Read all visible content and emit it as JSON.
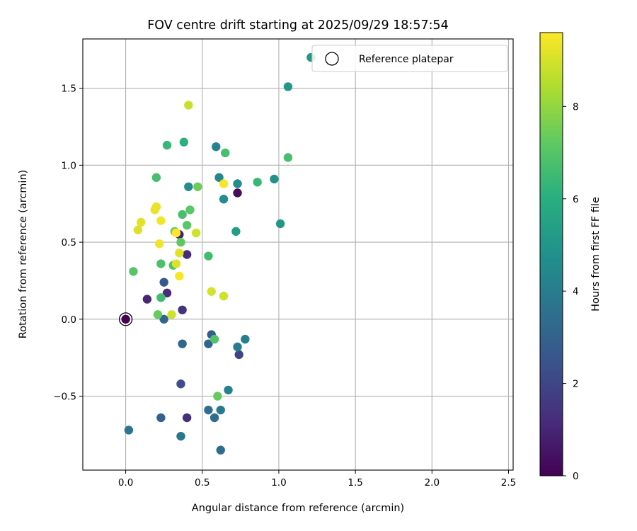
{
  "chart_data": {
    "type": "scatter",
    "title": "FOV centre drift starting at 2025/09/29 18:57:54",
    "xlabel": "Angular distance from reference (arcmin)",
    "ylabel": "Rotation from reference (arcmin)",
    "xlim": [
      -0.28,
      2.53
    ],
    "ylim": [
      -0.98,
      1.82
    ],
    "xticks": [
      0.0,
      0.5,
      1.0,
      1.5,
      2.0,
      2.5
    ],
    "xtick_labels": [
      "0.0",
      "0.5",
      "1.0",
      "1.5",
      "2.0",
      "2.5"
    ],
    "yticks": [
      -0.5,
      0.0,
      0.5,
      1.0,
      1.5
    ],
    "ytick_labels": [
      "−0.5",
      "0.0",
      "0.5",
      "1.0",
      "1.5"
    ],
    "grid": true,
    "legend": {
      "position": "top-right",
      "entries": [
        "Reference platepar"
      ]
    },
    "reference_point": {
      "x": 0.0,
      "y": 0.0,
      "hours": 0.0
    },
    "colorbar": {
      "label": "Hours from first FF file",
      "range": [
        0,
        9.6
      ],
      "ticks": [
        0,
        2,
        4,
        6,
        8
      ],
      "tick_labels": [
        "0",
        "2",
        "4",
        "6",
        "8"
      ],
      "colormap": "viridis"
    },
    "points": [
      {
        "x": 0.0,
        "y": 0.0,
        "hours": 0.0
      },
      {
        "x": 0.73,
        "y": 0.82,
        "hours": 0.3
      },
      {
        "x": 0.35,
        "y": 0.55,
        "hours": 0.8
      },
      {
        "x": 0.14,
        "y": 0.13,
        "hours": 1.0
      },
      {
        "x": 0.27,
        "y": 0.17,
        "hours": 1.2
      },
      {
        "x": 0.4,
        "y": 0.42,
        "hours": 1.2
      },
      {
        "x": 0.4,
        "y": -0.64,
        "hours": 1.3
      },
      {
        "x": 0.37,
        "y": 0.06,
        "hours": 1.4
      },
      {
        "x": 0.74,
        "y": -0.23,
        "hours": 2.0
      },
      {
        "x": 0.36,
        "y": -0.42,
        "hours": 2.3
      },
      {
        "x": 0.25,
        "y": 0.24,
        "hours": 2.7
      },
      {
        "x": 0.56,
        "y": -0.1,
        "hours": 2.8
      },
      {
        "x": 0.23,
        "y": -0.64,
        "hours": 3.0
      },
      {
        "x": 0.54,
        "y": -0.16,
        "hours": 3.1
      },
      {
        "x": 0.25,
        "y": 0.0,
        "hours": 3.1
      },
      {
        "x": 0.37,
        "y": -0.16,
        "hours": 3.2
      },
      {
        "x": 0.62,
        "y": -0.85,
        "hours": 3.3
      },
      {
        "x": 0.58,
        "y": -0.64,
        "hours": 3.4
      },
      {
        "x": 0.54,
        "y": -0.59,
        "hours": 3.5
      },
      {
        "x": 0.02,
        "y": -0.72,
        "hours": 3.7
      },
      {
        "x": 0.36,
        "y": -0.76,
        "hours": 3.8
      },
      {
        "x": 0.62,
        "y": -0.59,
        "hours": 3.9
      },
      {
        "x": 0.73,
        "y": -0.18,
        "hours": 4.0
      },
      {
        "x": 0.78,
        "y": -0.13,
        "hours": 4.1
      },
      {
        "x": 0.67,
        "y": -0.46,
        "hours": 4.2
      },
      {
        "x": 0.59,
        "y": 1.12,
        "hours": 4.2
      },
      {
        "x": 0.61,
        "y": 0.92,
        "hours": 4.4
      },
      {
        "x": 0.73,
        "y": 0.88,
        "hours": 4.6
      },
      {
        "x": 0.64,
        "y": 0.78,
        "hours": 4.6
      },
      {
        "x": 0.41,
        "y": 0.86,
        "hours": 4.7
      },
      {
        "x": 0.97,
        "y": 0.91,
        "hours": 4.9
      },
      {
        "x": 1.06,
        "y": 1.51,
        "hours": 5.0
      },
      {
        "x": 1.01,
        "y": 0.62,
        "hours": 5.0
      },
      {
        "x": 1.21,
        "y": 1.7,
        "hours": 5.1
      },
      {
        "x": 0.72,
        "y": 0.57,
        "hours": 5.3
      },
      {
        "x": 0.38,
        "y": 1.15,
        "hours": 6.1
      },
      {
        "x": 0.27,
        "y": 1.13,
        "hours": 6.4
      },
      {
        "x": 0.86,
        "y": 0.89,
        "hours": 6.4
      },
      {
        "x": 0.23,
        "y": 0.14,
        "hours": 6.6
      },
      {
        "x": 0.54,
        "y": 0.41,
        "hours": 6.6
      },
      {
        "x": 0.37,
        "y": 0.68,
        "hours": 6.7
      },
      {
        "x": 0.2,
        "y": 0.92,
        "hours": 6.7
      },
      {
        "x": 0.65,
        "y": 1.08,
        "hours": 6.7
      },
      {
        "x": 1.06,
        "y": 1.05,
        "hours": 6.7
      },
      {
        "x": 0.23,
        "y": 0.36,
        "hours": 6.8
      },
      {
        "x": 0.31,
        "y": 0.35,
        "hours": 6.9
      },
      {
        "x": 0.58,
        "y": -0.13,
        "hours": 6.9
      },
      {
        "x": 0.05,
        "y": 0.31,
        "hours": 7.0
      },
      {
        "x": 0.42,
        "y": 0.71,
        "hours": 7.1
      },
      {
        "x": 0.4,
        "y": 0.61,
        "hours": 7.1
      },
      {
        "x": 0.36,
        "y": 0.5,
        "hours": 7.2
      },
      {
        "x": 0.6,
        "y": -0.5,
        "hours": 7.3
      },
      {
        "x": 0.21,
        "y": 0.03,
        "hours": 7.3
      },
      {
        "x": 0.32,
        "y": 0.57,
        "hours": 7.4
      },
      {
        "x": 0.47,
        "y": 0.86,
        "hours": 7.4
      },
      {
        "x": 0.41,
        "y": 1.39,
        "hours": 8.8
      },
      {
        "x": 0.3,
        "y": 0.03,
        "hours": 8.9
      },
      {
        "x": 0.64,
        "y": 0.15,
        "hours": 8.9
      },
      {
        "x": 0.46,
        "y": 0.56,
        "hours": 8.9
      },
      {
        "x": 0.56,
        "y": 0.18,
        "hours": 9.0
      },
      {
        "x": 0.33,
        "y": 0.36,
        "hours": 9.1
      },
      {
        "x": 0.08,
        "y": 0.58,
        "hours": 9.1
      },
      {
        "x": 0.35,
        "y": 0.43,
        "hours": 9.2
      },
      {
        "x": 0.1,
        "y": 0.63,
        "hours": 9.2
      },
      {
        "x": 0.19,
        "y": 0.71,
        "hours": 9.3
      },
      {
        "x": 0.2,
        "y": 0.73,
        "hours": 9.3
      },
      {
        "x": 0.23,
        "y": 0.64,
        "hours": 9.4
      },
      {
        "x": 0.22,
        "y": 0.49,
        "hours": 9.4
      },
      {
        "x": 0.35,
        "y": 0.28,
        "hours": 9.5
      },
      {
        "x": 0.64,
        "y": 0.88,
        "hours": 9.5
      },
      {
        "x": 0.33,
        "y": 0.56,
        "hours": 9.6
      }
    ]
  }
}
